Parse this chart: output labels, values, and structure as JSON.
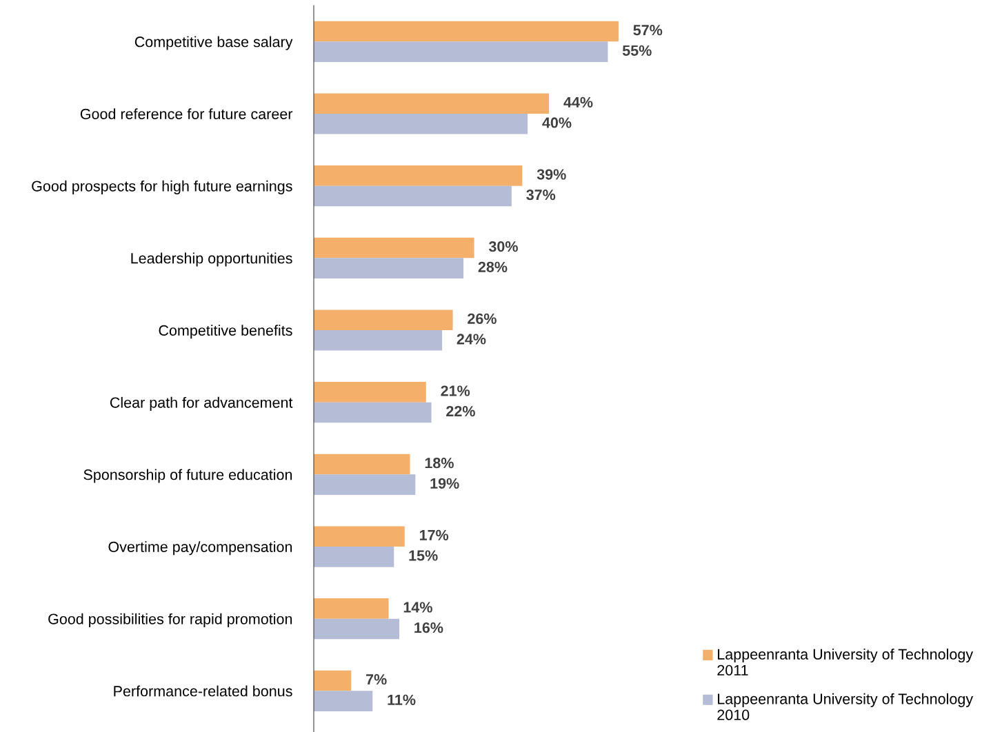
{
  "chart_data": {
    "type": "bar",
    "orientation": "horizontal",
    "categories": [
      "Competitive base salary",
      "Good reference for future career",
      "Good prospects for high future earnings",
      "Leadership opportunities",
      "Competitive benefits",
      "Clear path for advancement",
      "Sponsorship of future education",
      "Overtime pay/compensation",
      "Good possibilities for rapid promotion",
      "Performance-related bonus"
    ],
    "series": [
      {
        "name": "Lappeenranta University of Technology 2011",
        "color": "#f4b06a",
        "values": [
          57,
          44,
          39,
          30,
          26,
          21,
          18,
          17,
          14,
          7
        ],
        "value_labels": [
          "57%",
          "44%",
          "39%",
          "30%",
          "26%",
          "21%",
          "18%",
          "17%",
          "14%",
          "7%"
        ]
      },
      {
        "name": "Lappeenranta University of Technology 2010",
        "color": "#b4bcd6",
        "values": [
          55,
          40,
          37,
          28,
          24,
          22,
          19,
          15,
          16,
          11
        ],
        "value_labels": [
          "55%",
          "40%",
          "37%",
          "28%",
          "24%",
          "22%",
          "19%",
          "15%",
          "16%",
          "11%"
        ]
      }
    ],
    "tick_labels": "y",
    "grid": false,
    "legend": "bottom right"
  }
}
